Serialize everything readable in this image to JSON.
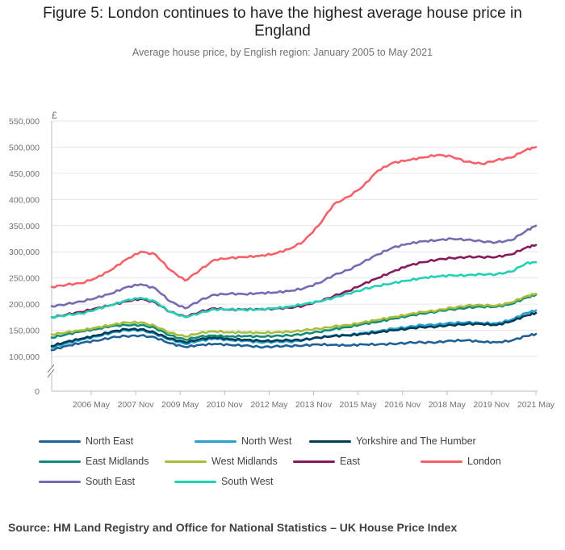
{
  "header": {
    "title_line1": "Figure 5: London continues to have the highest average house price in",
    "title_line2": "England",
    "subtitle": "Average house price, by English region: January 2005 to May 2021"
  },
  "footer": {
    "source": "Source: HM Land Registry and Office for National Statistics – UK House Price Index"
  },
  "colors": {
    "North East": "#206095",
    "North West": "#27A0CC",
    "Yorkshire and The Humber": "#003C57",
    "East Midlands": "#118C7B",
    "West Midlands": "#A8BD3A",
    "East": "#871A5B",
    "London": "#F66068",
    "South East": "#746CB1",
    "South West": "#22D0B6"
  },
  "chart_data": {
    "type": "line",
    "title": "Figure 5: London continues to have the highest average house price in England",
    "subtitle": "Average house price, by English region: January 2005 to May 2021",
    "ylabel": "£",
    "xlabel": "",
    "y_axis_broken": true,
    "ylim": [
      0,
      550000
    ],
    "y_ticks": [
      0,
      100000,
      150000,
      200000,
      250000,
      300000,
      350000,
      400000,
      450000,
      500000,
      550000
    ],
    "y_tick_labels": [
      "0",
      "100,000",
      "150,000",
      "200,000",
      "250,000",
      "300,000",
      "350,000",
      "400,000",
      "450,000",
      "500,000",
      "550,000"
    ],
    "x_ticks": [
      "2006-05",
      "2007-11",
      "2009-05",
      "2010-11",
      "2012-05",
      "2013-11",
      "2015-05",
      "2016-11",
      "2018-05",
      "2019-11",
      "2021-05"
    ],
    "x_tick_labels": [
      "2006 May",
      "2007 Nov",
      "2009 May",
      "2010 Nov",
      "2012 May",
      "2013 Nov",
      "2015 May",
      "2016 Nov",
      "2018 May",
      "2019 Nov",
      "2021 May"
    ],
    "grid": true,
    "legend_position": "bottom",
    "x_dates": [
      "2005-01",
      "2005-07",
      "2006-01",
      "2006-07",
      "2007-01",
      "2007-07",
      "2008-01",
      "2008-07",
      "2009-01",
      "2009-07",
      "2010-01",
      "2010-07",
      "2011-01",
      "2011-07",
      "2012-01",
      "2012-07",
      "2013-01",
      "2013-07",
      "2014-01",
      "2014-07",
      "2015-01",
      "2015-07",
      "2016-01",
      "2016-07",
      "2017-01",
      "2017-07",
      "2018-01",
      "2018-07",
      "2019-01",
      "2019-07",
      "2020-01",
      "2020-07",
      "2021-01",
      "2021-05"
    ],
    "series": [
      {
        "name": "North East",
        "values": [
          112000,
          120000,
          126000,
          130000,
          136000,
          139000,
          140000,
          136000,
          125000,
          118000,
          122000,
          124000,
          122000,
          121000,
          118000,
          119000,
          120000,
          121000,
          123000,
          122000,
          121000,
          123000,
          123000,
          124000,
          126000,
          127000,
          127000,
          130000,
          131000,
          128000,
          127000,
          130000,
          139000,
          143000
        ]
      },
      {
        "name": "North West",
        "values": [
          117000,
          125000,
          132000,
          138000,
          145000,
          150000,
          150000,
          143000,
          132000,
          124000,
          130000,
          134000,
          131000,
          130000,
          127000,
          128000,
          128000,
          131000,
          136000,
          140000,
          141000,
          145000,
          148000,
          153000,
          156000,
          160000,
          161000,
          164000,
          165000,
          164000,
          163000,
          170000,
          183000,
          188000
        ]
      },
      {
        "name": "Yorkshire and The Humber",
        "values": [
          120000,
          128000,
          134000,
          140000,
          147000,
          152000,
          152000,
          145000,
          134000,
          127000,
          133000,
          136000,
          133000,
          132000,
          130000,
          130000,
          131000,
          132000,
          136000,
          139000,
          140000,
          143000,
          146000,
          150000,
          153000,
          156000,
          157000,
          160000,
          162000,
          162000,
          160000,
          167000,
          178000,
          183000
        ]
      },
      {
        "name": "East Midlands",
        "values": [
          136000,
          142000,
          148000,
          152000,
          158000,
          160000,
          160000,
          154000,
          140000,
          132000,
          138000,
          140000,
          138000,
          139000,
          138000,
          139000,
          140000,
          143000,
          147000,
          152000,
          156000,
          162000,
          166000,
          172000,
          177000,
          182000,
          186000,
          190000,
          193000,
          195000,
          195000,
          200000,
          212000,
          218000
        ]
      },
      {
        "name": "West Midlands",
        "values": [
          142000,
          146000,
          150000,
          155000,
          160000,
          165000,
          165000,
          158000,
          145000,
          138000,
          145000,
          148000,
          146000,
          146000,
          145000,
          146000,
          147000,
          150000,
          153000,
          157000,
          160000,
          165000,
          170000,
          175000,
          180000,
          185000,
          188000,
          193000,
          197000,
          198000,
          197000,
          203000,
          215000,
          220000
        ]
      },
      {
        "name": "East",
        "values": [
          175000,
          180000,
          185000,
          192000,
          198000,
          205000,
          210000,
          203000,
          185000,
          176000,
          185000,
          192000,
          189000,
          190000,
          190000,
          191000,
          193000,
          197000,
          205000,
          215000,
          225000,
          238000,
          250000,
          262000,
          273000,
          280000,
          285000,
          288000,
          290000,
          290000,
          290000,
          295000,
          308000,
          313000
        ]
      },
      {
        "name": "London",
        "values": [
          233000,
          237000,
          240000,
          250000,
          265000,
          285000,
          300000,
          295000,
          265000,
          245000,
          265000,
          285000,
          288000,
          290000,
          292000,
          296000,
          305000,
          320000,
          350000,
          390000,
          405000,
          425000,
          455000,
          470000,
          475000,
          480000,
          485000,
          482000,
          472000,
          468000,
          475000,
          480000,
          495000,
          500000
        ]
      },
      {
        "name": "South East",
        "values": [
          196000,
          200000,
          205000,
          212000,
          220000,
          232000,
          238000,
          230000,
          205000,
          192000,
          207000,
          218000,
          220000,
          219000,
          221000,
          222000,
          225000,
          230000,
          240000,
          255000,
          265000,
          280000,
          295000,
          308000,
          315000,
          320000,
          322000,
          325000,
          323000,
          320000,
          318000,
          322000,
          340000,
          350000
        ]
      },
      {
        "name": "South West",
        "values": [
          175000,
          179000,
          182000,
          190000,
          198000,
          207000,
          212000,
          205000,
          185000,
          175000,
          183000,
          190000,
          190000,
          189000,
          190000,
          192000,
          195000,
          200000,
          205000,
          212000,
          220000,
          228000,
          235000,
          240000,
          245000,
          250000,
          253000,
          255000,
          255000,
          257000,
          257000,
          262000,
          278000,
          280000
        ]
      }
    ]
  }
}
